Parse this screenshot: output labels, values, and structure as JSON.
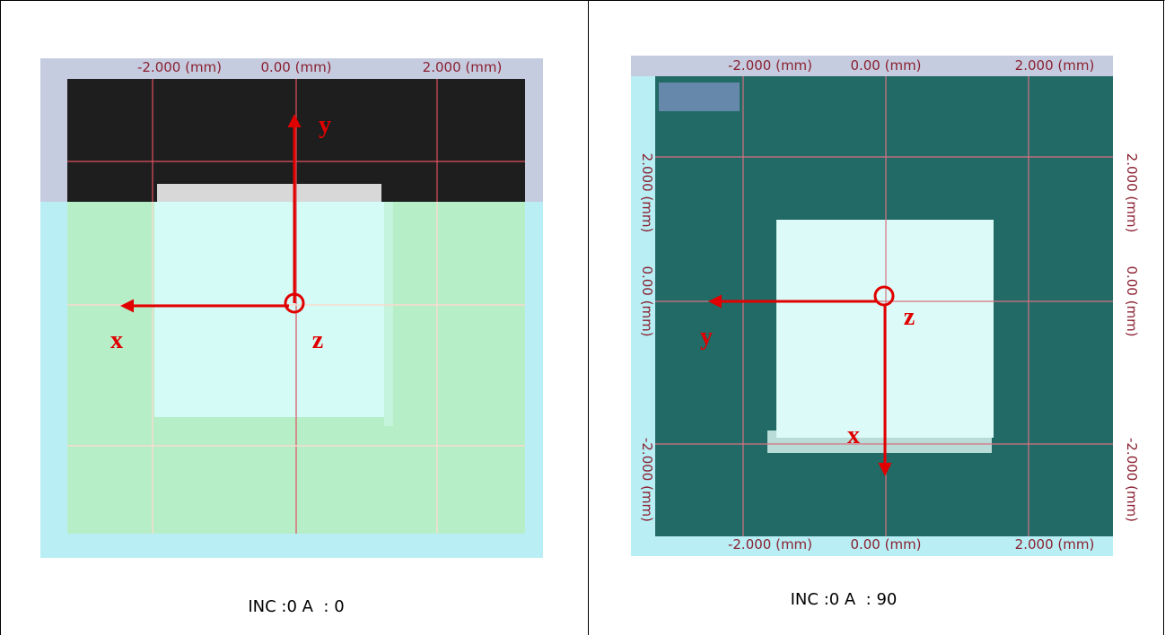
{
  "panels": [
    {
      "top_labels": [
        "-2.000 (mm)",
        "0.00 (mm)",
        "2.000 (mm)"
      ],
      "arrow_labels": {
        "up": "y",
        "left": "x",
        "origin": "z"
      },
      "caption": "INC :0 A  : 0"
    },
    {
      "top_labels": [
        "-2.000 (mm)",
        "0.00 (mm)",
        "2.000 (mm)"
      ],
      "bottom_labels": [
        "-2.000 (mm)",
        "0.00 (mm)",
        "2.000 (mm)"
      ],
      "side_labels": [
        "2.000 (mm)",
        "0.00 (mm)",
        "-2.000 (mm)"
      ],
      "arrow_labels": {
        "left": "y",
        "down": "x",
        "origin": "z"
      },
      "caption": "INC :0 A  : 90"
    }
  ]
}
